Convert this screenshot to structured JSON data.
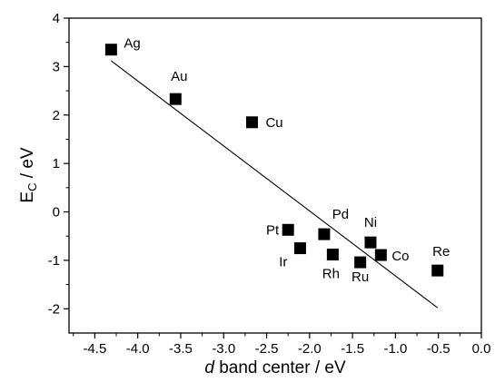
{
  "chart_data": {
    "type": "scatter",
    "xlabel": {
      "italic": "d",
      "rest": " band center / eV"
    },
    "ylabel": {
      "main": "E",
      "sub": "C",
      "rest": " / eV"
    },
    "xlim": [
      -4.8,
      0.0
    ],
    "ylim": [
      -2.5,
      4.0
    ],
    "xticks": [
      -4.5,
      -4.0,
      -3.5,
      -3.0,
      -2.5,
      -2.0,
      -1.5,
      -1.0,
      -0.5,
      0.0
    ],
    "xtick_labels": [
      "-4.5",
      "-4.0",
      "-3.5",
      "-3.0",
      "-2.5",
      "-2.0",
      "-1.5",
      "-1.0",
      "-0.5",
      "0.0"
    ],
    "yticks": [
      -2,
      -1,
      0,
      1,
      2,
      3,
      4
    ],
    "ytick_labels": [
      "-2",
      "-1",
      "0",
      "1",
      "2",
      "3",
      "4"
    ],
    "grid": false,
    "marker": "filled-square",
    "marker_color": "#000000",
    "points": [
      {
        "label": "Ag",
        "x": -4.31,
        "y": 3.35
      },
      {
        "label": "Au",
        "x": -3.56,
        "y": 2.33
      },
      {
        "label": "Cu",
        "x": -2.67,
        "y": 1.85
      },
      {
        "label": "Pt",
        "x": -2.25,
        "y": -0.37
      },
      {
        "label": "Ir",
        "x": -2.11,
        "y": -0.75
      },
      {
        "label": "Pd",
        "x": -1.83,
        "y": -0.46
      },
      {
        "label": "Rh",
        "x": -1.73,
        "y": -0.88
      },
      {
        "label": "Ru",
        "x": -1.41,
        "y": -1.04
      },
      {
        "label": "Ni",
        "x": -1.29,
        "y": -0.63
      },
      {
        "label": "Co",
        "x": -1.17,
        "y": -0.89
      },
      {
        "label": "Re",
        "x": -0.51,
        "y": -1.21
      }
    ],
    "fit_line": {
      "x1": -4.31,
      "y1": 3.12,
      "x2": -0.51,
      "y2": -1.98
    }
  }
}
